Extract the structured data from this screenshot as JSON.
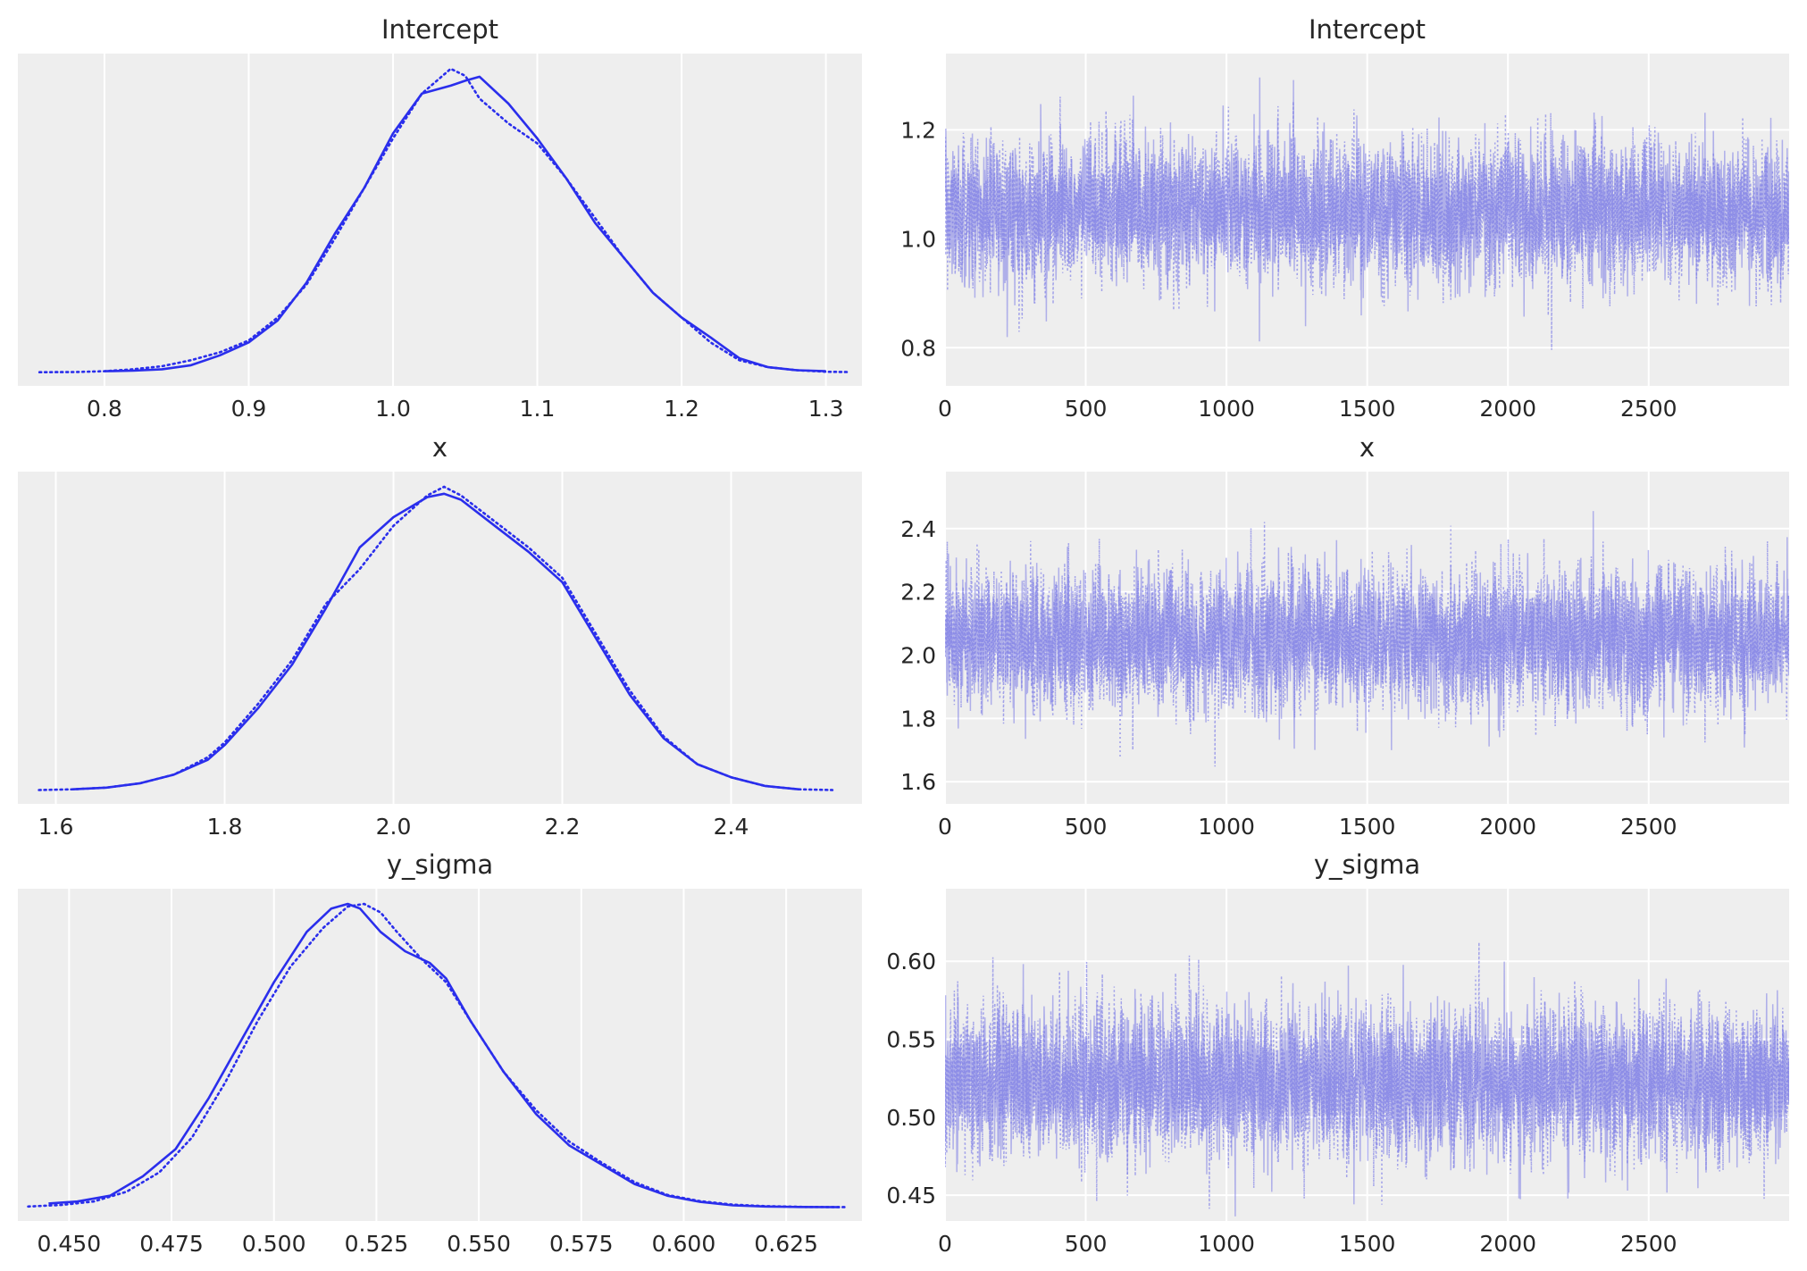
{
  "colors": {
    "line": "#2a2eec",
    "trace": "#7b7be6",
    "panel_bg": "#eeeeee"
  },
  "chart_data": [
    {
      "type": "line",
      "kind": "kde",
      "title": "Intercept",
      "xlim": [
        0.74,
        1.325
      ],
      "xticks": [
        0.8,
        0.9,
        1.0,
        1.1,
        1.2,
        1.3
      ],
      "xtick_labels": [
        "0.8",
        "0.9",
        "1.0",
        "1.1",
        "1.2",
        "1.3"
      ],
      "yticks": [],
      "series": [
        {
          "style": "solid",
          "x": [
            0.8,
            0.82,
            0.84,
            0.86,
            0.88,
            0.9,
            0.92,
            0.94,
            0.96,
            0.98,
            1.0,
            1.02,
            1.04,
            1.05,
            1.06,
            1.08,
            1.1,
            1.12,
            1.14,
            1.16,
            1.18,
            1.2,
            1.22,
            1.24,
            1.26,
            1.28,
            1.3
          ],
          "y": [
            0.01,
            0.015,
            0.03,
            0.07,
            0.17,
            0.3,
            0.52,
            0.9,
            1.4,
            1.85,
            2.4,
            2.8,
            2.88,
            2.93,
            2.97,
            2.7,
            2.35,
            1.95,
            1.5,
            1.15,
            0.8,
            0.55,
            0.35,
            0.14,
            0.05,
            0.02,
            0.01
          ]
        },
        {
          "style": "dotted",
          "x": [
            0.755,
            0.78,
            0.8,
            0.82,
            0.84,
            0.86,
            0.88,
            0.9,
            0.92,
            0.94,
            0.96,
            0.98,
            1.0,
            1.02,
            1.04,
            1.05,
            1.06,
            1.08,
            1.1,
            1.12,
            1.14,
            1.16,
            1.18,
            1.2,
            1.22,
            1.24,
            1.26,
            1.28,
            1.3,
            1.315
          ],
          "y": [
            0.0,
            0.002,
            0.01,
            0.03,
            0.06,
            0.12,
            0.2,
            0.32,
            0.55,
            0.88,
            1.35,
            1.85,
            2.35,
            2.8,
            3.05,
            2.98,
            2.75,
            2.5,
            2.3,
            1.95,
            1.55,
            1.15,
            0.8,
            0.55,
            0.3,
            0.12,
            0.05,
            0.02,
            0.005,
            0.002
          ]
        }
      ]
    },
    {
      "type": "line",
      "kind": "trace",
      "title": "Intercept",
      "xlim": [
        0,
        2999
      ],
      "ylim": [
        0.73,
        1.34
      ],
      "xticks": [
        0,
        500,
        1000,
        1500,
        2000,
        2500
      ],
      "xtick_labels": [
        "0",
        "500",
        "1000",
        "1500",
        "2000",
        "2500"
      ],
      "yticks": [
        0.8,
        1.0,
        1.2
      ],
      "ytick_labels": [
        "0.8",
        "1.0",
        "1.2"
      ],
      "center": 1.05,
      "spread": 0.065,
      "series": [
        {
          "style": "solid"
        },
        {
          "style": "dotted"
        }
      ]
    },
    {
      "type": "line",
      "kind": "kde",
      "title": "x",
      "xlim": [
        1.555,
        2.555
      ],
      "xticks": [
        1.6,
        1.8,
        2.0,
        2.2,
        2.4
      ],
      "xtick_labels": [
        "1.6",
        "1.8",
        "2.0",
        "2.2",
        "2.4"
      ],
      "yticks": [],
      "series": [
        {
          "style": "solid",
          "x": [
            1.62,
            1.66,
            1.7,
            1.74,
            1.78,
            1.8,
            1.84,
            1.88,
            1.92,
            1.96,
            2.0,
            2.04,
            2.06,
            2.08,
            2.12,
            2.16,
            2.2,
            2.24,
            2.28,
            2.32,
            2.36,
            2.4,
            2.44,
            2.48
          ],
          "y": [
            0.01,
            0.03,
            0.08,
            0.18,
            0.35,
            0.52,
            0.95,
            1.45,
            2.1,
            2.8,
            3.15,
            3.38,
            3.42,
            3.35,
            3.05,
            2.75,
            2.4,
            1.75,
            1.1,
            0.6,
            0.3,
            0.15,
            0.05,
            0.01
          ]
        },
        {
          "style": "dotted",
          "x": [
            1.58,
            1.62,
            1.66,
            1.7,
            1.74,
            1.78,
            1.8,
            1.84,
            1.88,
            1.92,
            1.96,
            2.0,
            2.04,
            2.06,
            2.08,
            2.12,
            2.16,
            2.2,
            2.24,
            2.28,
            2.32,
            2.36,
            2.4,
            2.44,
            2.48,
            2.52
          ],
          "y": [
            0.002,
            0.01,
            0.03,
            0.08,
            0.18,
            0.38,
            0.55,
            1.0,
            1.5,
            2.15,
            2.55,
            3.05,
            3.4,
            3.5,
            3.4,
            3.1,
            2.8,
            2.45,
            1.8,
            1.15,
            0.62,
            0.3,
            0.15,
            0.05,
            0.01,
            0.002
          ]
        }
      ]
    },
    {
      "type": "line",
      "kind": "trace",
      "title": "x",
      "xlim": [
        0,
        2999
      ],
      "ylim": [
        1.53,
        2.58
      ],
      "xticks": [
        0,
        500,
        1000,
        1500,
        2000,
        2500
      ],
      "xtick_labels": [
        "0",
        "500",
        "1000",
        "1500",
        "2000",
        "2500"
      ],
      "yticks": [
        1.6,
        1.8,
        2.0,
        2.2,
        2.4
      ],
      "ytick_labels": [
        "1.6",
        "1.8",
        "2.0",
        "2.2",
        "2.4"
      ],
      "center": 2.05,
      "spread": 0.11,
      "series": [
        {
          "style": "solid"
        },
        {
          "style": "dotted"
        }
      ]
    },
    {
      "type": "line",
      "kind": "kde",
      "title": "y_sigma",
      "xlim": [
        0.4375,
        0.6435
      ],
      "xticks": [
        0.45,
        0.475,
        0.5,
        0.525,
        0.55,
        0.575,
        0.6,
        0.625
      ],
      "xtick_labels": [
        "0.450",
        "0.475",
        "0.500",
        "0.525",
        "0.550",
        "0.575",
        "0.600",
        "0.625"
      ],
      "yticks": [],
      "series": [
        {
          "style": "solid",
          "x": [
            0.445,
            0.452,
            0.46,
            0.468,
            0.476,
            0.484,
            0.492,
            0.5,
            0.508,
            0.514,
            0.518,
            0.521,
            0.526,
            0.532,
            0.538,
            0.542,
            0.548,
            0.556,
            0.564,
            0.572,
            0.58,
            0.588,
            0.596,
            0.604,
            0.612,
            0.62,
            0.628,
            0.638
          ],
          "y": [
            0.1,
            0.15,
            0.3,
            0.8,
            1.5,
            2.8,
            4.3,
            5.8,
            7.1,
            7.7,
            7.82,
            7.7,
            7.1,
            6.6,
            6.3,
            5.9,
            4.8,
            3.5,
            2.4,
            1.6,
            1.1,
            0.6,
            0.3,
            0.14,
            0.05,
            0.02,
            0.01,
            0.005
          ]
        },
        {
          "style": "dotted",
          "x": [
            0.44,
            0.448,
            0.456,
            0.464,
            0.472,
            0.48,
            0.488,
            0.496,
            0.504,
            0.512,
            0.518,
            0.522,
            0.526,
            0.53,
            0.536,
            0.542,
            0.548,
            0.556,
            0.564,
            0.572,
            0.58,
            0.588,
            0.596,
            0.604,
            0.612,
            0.62,
            0.63,
            0.64
          ],
          "y": [
            0.02,
            0.06,
            0.15,
            0.4,
            0.9,
            1.8,
            3.2,
            4.8,
            6.2,
            7.2,
            7.75,
            7.82,
            7.6,
            7.1,
            6.4,
            5.8,
            4.8,
            3.5,
            2.5,
            1.7,
            1.15,
            0.65,
            0.32,
            0.16,
            0.07,
            0.03,
            0.01,
            0.005
          ]
        }
      ]
    },
    {
      "type": "line",
      "kind": "trace",
      "title": "y_sigma",
      "xlim": [
        0,
        2999
      ],
      "ylim": [
        0.4335,
        0.6465
      ],
      "xticks": [
        0,
        500,
        1000,
        1500,
        2000,
        2500
      ],
      "xtick_labels": [
        "0",
        "500",
        "1000",
        "1500",
        "2000",
        "2500"
      ],
      "yticks": [
        0.45,
        0.5,
        0.55,
        0.6
      ],
      "ytick_labels": [
        "0.45",
        "0.50",
        "0.55",
        "0.60"
      ],
      "center": 0.522,
      "spread": 0.024,
      "series": [
        {
          "style": "solid"
        },
        {
          "style": "dotted"
        }
      ]
    }
  ]
}
